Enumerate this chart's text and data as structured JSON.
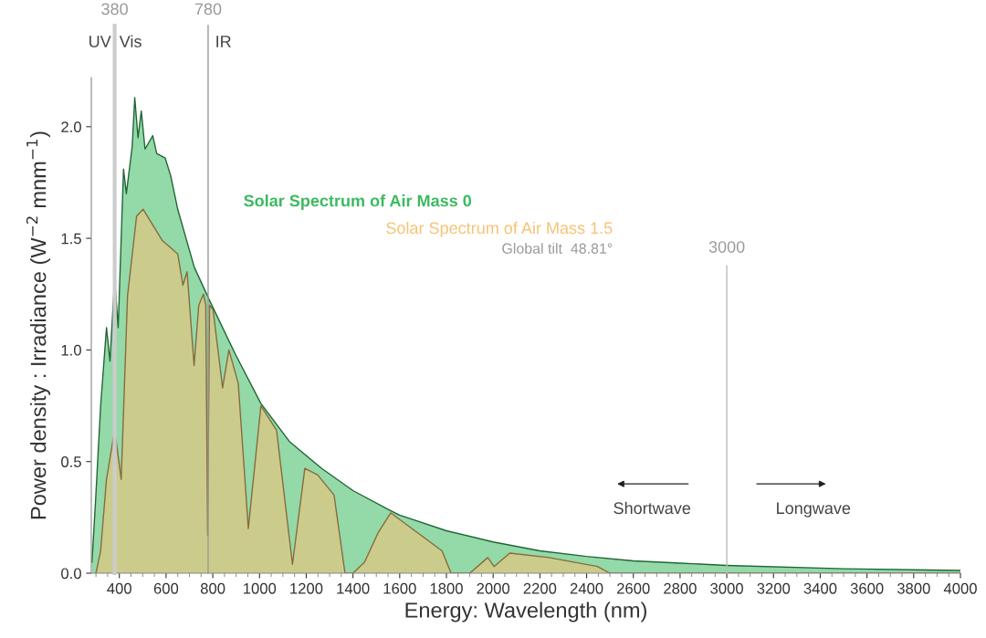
{
  "chart_data": {
    "type": "area",
    "xlabel": "Energy: Wavelength (nm)",
    "ylabel": "Power density : Irradiance (W$^{−2}$ mnm$^{−1}$)",
    "xlim": [
      280,
      4000
    ],
    "ylim": [
      0,
      2.22
    ],
    "xticks": [
      400,
      600,
      800,
      1000,
      1200,
      1400,
      1600,
      1800,
      2000,
      2200,
      2400,
      2600,
      2800,
      3000,
      3200,
      3400,
      3600,
      3800,
      4000
    ],
    "yticks": [
      {
        "value": 0,
        "label": "0.0"
      },
      {
        "value": 0.5,
        "label": "0.5"
      },
      {
        "value": 1,
        "label": "1.0"
      },
      {
        "value": 1.5,
        "label": "1.5"
      },
      {
        "value": 2,
        "label": "2.0"
      }
    ],
    "grid": false,
    "series": [
      {
        "name": "Solar Spectrum of Air Mass 0",
        "color": "#3cba60",
        "x": [
          283,
          298,
          320,
          345,
          360,
          380,
          395,
          418,
          430,
          455,
          466,
          480,
          494,
          510,
          543,
          560,
          596,
          620,
          650,
          721,
          787,
          897,
          1006,
          1128,
          1265,
          1400,
          1562,
          1600,
          1800,
          2000,
          2200,
          2400,
          2600,
          2800,
          3000,
          3500,
          4000
        ],
        "values": [
          0.05,
          0.32,
          0.75,
          1.1,
          0.95,
          1.32,
          1.1,
          1.81,
          1.7,
          1.91,
          2.13,
          1.95,
          2.07,
          1.9,
          1.96,
          1.88,
          1.86,
          1.78,
          1.63,
          1.37,
          1.22,
          0.98,
          0.76,
          0.59,
          0.47,
          0.37,
          0.28,
          0.26,
          0.19,
          0.14,
          0.1,
          0.075,
          0.055,
          0.045,
          0.035,
          0.02,
          0.012
        ]
      },
      {
        "name": "Solar Spectrum of Air Mass 1.5",
        "color": "#f7c173",
        "x": [
          300,
          320,
          345,
          380,
          408,
          435,
          474,
          502,
          537,
          584,
          650,
          672,
          690,
          720,
          740,
          760,
          770,
          778,
          786,
          801,
          842,
          869,
          909,
          952,
          1006,
          1073,
          1141,
          1194,
          1249,
          1319,
          1366,
          1400,
          1450,
          1507,
          1562,
          1781,
          1820,
          1900,
          1977,
          2004,
          2071,
          2239,
          2446,
          2500,
          4000
        ],
        "values": [
          0,
          0.1,
          0.42,
          0.64,
          0.42,
          1.24,
          1.6,
          1.63,
          1.57,
          1.49,
          1.43,
          1.29,
          1.35,
          0.93,
          1.2,
          1.25,
          1.2,
          0.17,
          1.2,
          1.18,
          0.83,
          1.0,
          0.85,
          0.2,
          0.75,
          0.64,
          0.04,
          0.47,
          0.44,
          0.35,
          0,
          0,
          0.05,
          0.18,
          0.27,
          0.1,
          0,
          0,
          0.07,
          0.03,
          0.09,
          0.07,
          0.03,
          0,
          0
        ]
      }
    ],
    "ref_lines": [
      {
        "axis": "x",
        "value": 380,
        "label": "380",
        "color": "#cccccc"
      },
      {
        "axis": "x",
        "value": 780,
        "label": "780",
        "color": "#999999"
      },
      {
        "axis": "x",
        "value": 3000,
        "label": "3000",
        "color": "#bbbbbb"
      }
    ],
    "annotations": [
      "UV",
      "Vis",
      "IR",
      "Global tilt  48.81°",
      "Shortwave",
      "Longwave"
    ]
  }
}
